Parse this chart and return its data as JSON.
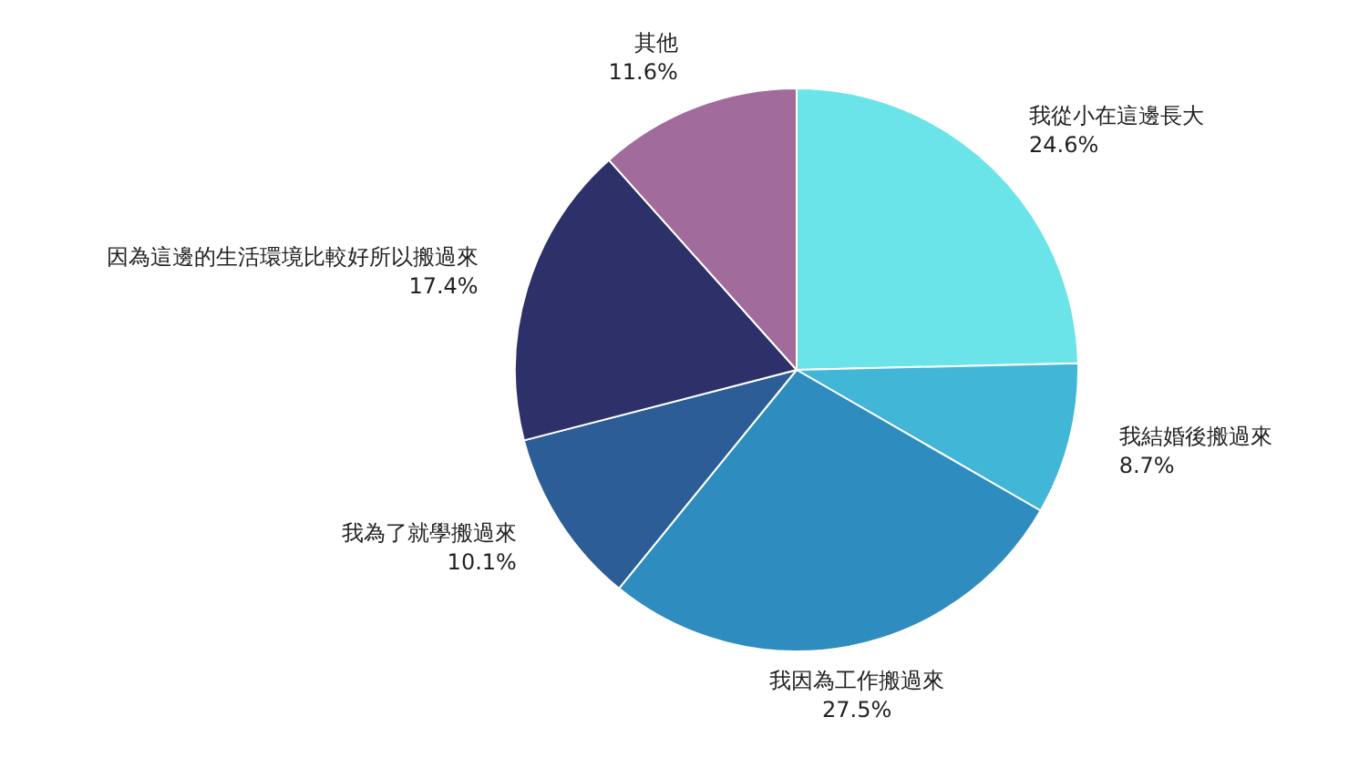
{
  "chart_data": {
    "type": "pie",
    "categories": [
      "我從小在這邊長大",
      "我結婚後搬過來",
      "我因為工作搬過來",
      "我為了就學搬過來",
      "因為這邊的生活環境比較好所以搬過來",
      "其他"
    ],
    "values": [
      24.6,
      8.7,
      27.5,
      10.1,
      17.4,
      11.6
    ],
    "colors": [
      "#6ae4e8",
      "#41b6d6",
      "#2e8cbf",
      "#2c5d96",
      "#2e3169",
      "#a16b9b"
    ],
    "value_labels": [
      "24.6%",
      "8.7%",
      "27.5%",
      "10.1%",
      "17.4%",
      "11.6%"
    ],
    "legend": false
  }
}
